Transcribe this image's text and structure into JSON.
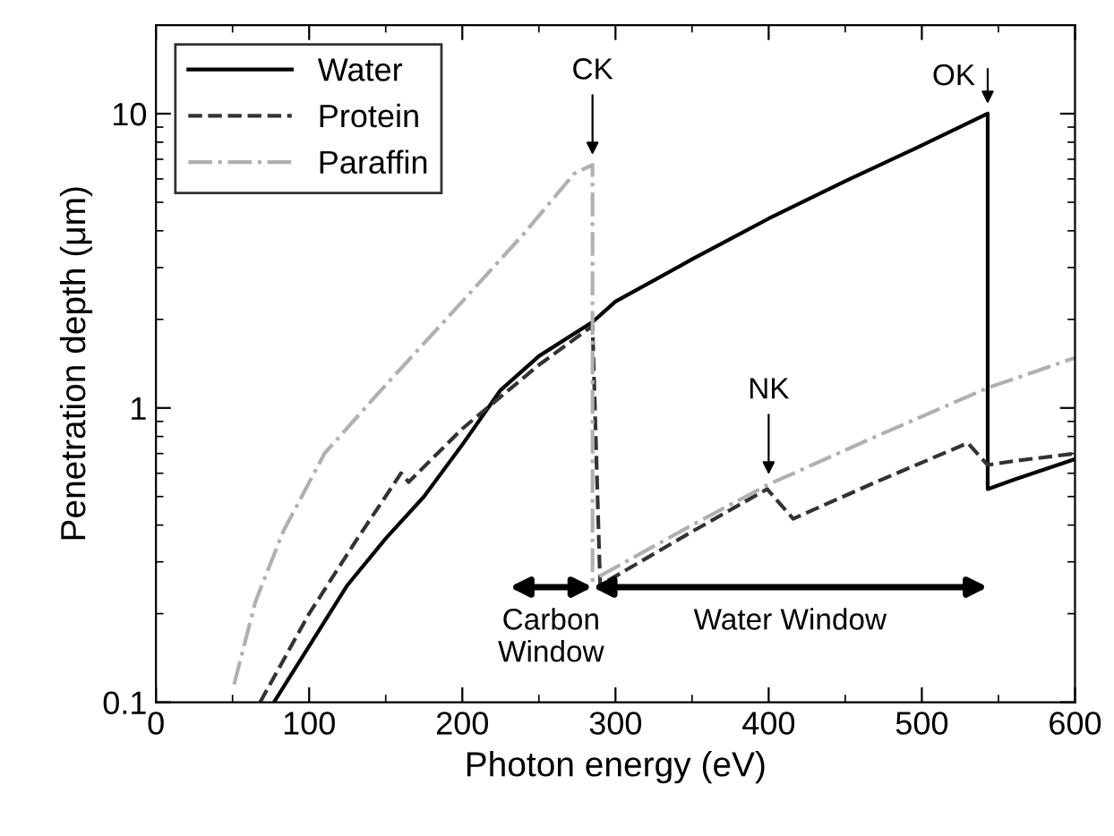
{
  "chart_data": {
    "type": "line",
    "xlabel": "Photon energy (eV)",
    "ylabel": "Penetration depth (μm)",
    "log": "y",
    "xlim": [
      0,
      600
    ],
    "xticks": [
      0,
      100,
      200,
      300,
      400,
      500,
      600
    ],
    "ylim": [
      0.1,
      20
    ],
    "yticks": [
      0.1,
      1,
      10
    ],
    "grid": false,
    "legend": "top left",
    "marker": "none",
    "series": [
      {
        "name": "Water",
        "color": "#000000",
        "line_style": "solid",
        "x": [
          77,
          100,
          125,
          150,
          175,
          200,
          225,
          250,
          285,
          300,
          350,
          400,
          450,
          500,
          543,
          543,
          560,
          600
        ],
        "values": [
          0.1,
          0.155,
          0.25,
          0.36,
          0.5,
          0.75,
          1.15,
          1.5,
          1.96,
          2.3,
          3.2,
          4.4,
          5.9,
          7.8,
          10,
          0.53,
          0.57,
          0.67
        ]
      },
      {
        "name": "Protein",
        "color": "#333333",
        "line_style": "dashed",
        "x": [
          68,
          100,
          130,
          160,
          165,
          200,
          250,
          285,
          290,
          350,
          399,
          416,
          470,
          530,
          543,
          560,
          600
        ],
        "values": [
          0.1,
          0.2,
          0.35,
          0.6,
          0.56,
          0.85,
          1.4,
          1.9,
          0.25,
          0.38,
          0.53,
          0.42,
          0.56,
          0.76,
          0.64,
          0.66,
          0.7
        ]
      },
      {
        "name": "Paraffin",
        "color": "#b0b0b0",
        "line_style": "dashdot",
        "x": [
          51,
          65,
          83,
          110,
          145,
          200,
          240,
          273,
          285,
          285,
          350,
          400,
          470,
          543,
          600
        ],
        "values": [
          0.115,
          0.22,
          0.38,
          0.7,
          1.12,
          2.3,
          3.9,
          6.25,
          6.7,
          0.26,
          0.4,
          0.55,
          0.8,
          1.17,
          1.48
        ]
      }
    ],
    "annotations": [
      {
        "text": "CK",
        "x": 285,
        "y": 6.7
      },
      {
        "text": "NK",
        "x": 400,
        "y": 0.55
      },
      {
        "text": "OK",
        "x": 543,
        "y": 10
      },
      "Carbon\nWindow",
      "Water Window"
    ]
  }
}
